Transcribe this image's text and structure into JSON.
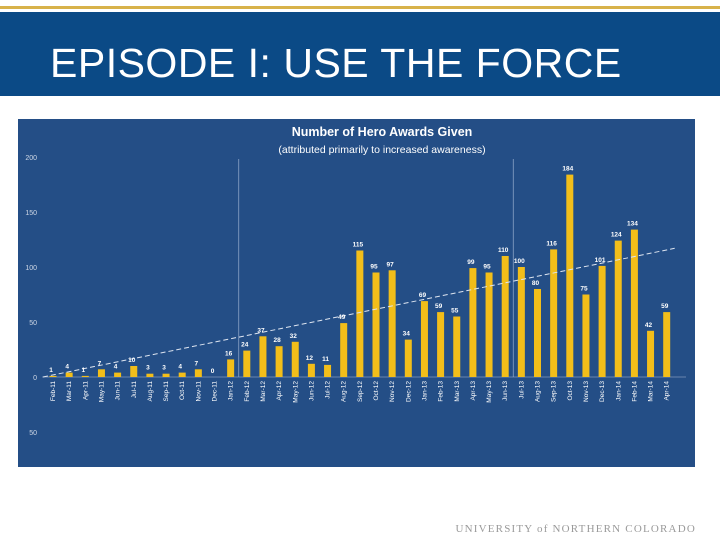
{
  "slide": {
    "title": "EPISODE I: USE THE FORCE",
    "footer": "UNIVERSITY of NORTHERN COLORADO"
  },
  "colors": {
    "header_bg": "#0b4a86",
    "chart_bg": "#244e86",
    "bar": "#f2be1a",
    "accent_line": "#d8b24a"
  },
  "chart_data": {
    "type": "bar",
    "title": "Number of Hero Awards Given",
    "subtitle": "(attributed primarily to increased awareness)",
    "ylim": [
      -50,
      200
    ],
    "yticks": [
      -50,
      0,
      50,
      100,
      150,
      200
    ],
    "ytick_labels": [
      "50",
      "0",
      "50",
      "100",
      "150",
      "200"
    ],
    "trendline": {
      "style": "dashed",
      "from": 0,
      "to": 117
    },
    "vertical_markers": [
      "Jan-12",
      "Jun-13"
    ],
    "categories": [
      "Feb-11",
      "Mar-11",
      "Apr-11",
      "May-11",
      "Jun-11",
      "Jul-11",
      "Aug-11",
      "Sep-11",
      "Oct-11",
      "Nov-11",
      "Dec-11",
      "Jan-12",
      "Feb-12",
      "Mar-12",
      "Apr-12",
      "May-12",
      "Jun-12",
      "Jul-12",
      "Aug-12",
      "Sep-12",
      "Oct-12",
      "Nov-12",
      "Dec-12",
      "Jan-13",
      "Feb-13",
      "Mar-13",
      "Apr-13",
      "May-13",
      "Jun-13",
      "Jul-13",
      "Aug-13",
      "Sep-13",
      "Oct-13",
      "Nov-13",
      "Dec-13",
      "Jan-14",
      "Feb-14",
      "Mar-14",
      "Apr-14"
    ],
    "values": [
      1,
      4,
      1,
      7,
      4,
      10,
      3,
      3,
      4,
      7,
      0,
      16,
      24,
      37,
      28,
      32,
      12,
      11,
      49,
      115,
      95,
      97,
      34,
      69,
      59,
      55,
      99,
      95,
      110,
      100,
      80,
      116,
      184,
      75,
      101,
      124,
      134,
      42,
      59
    ]
  }
}
